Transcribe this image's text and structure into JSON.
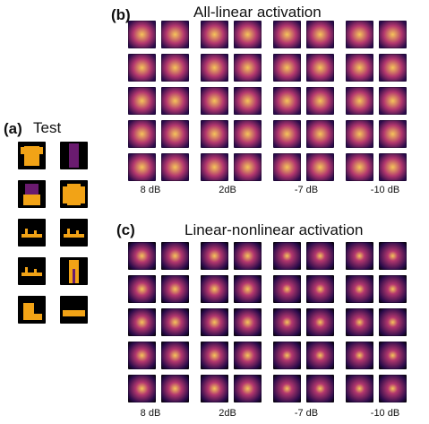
{
  "panels": {
    "a": {
      "label": "(a)",
      "title": "Test"
    },
    "b": {
      "label": "(b)",
      "title": "All-linear activation",
      "snr_labels": [
        "8 dB",
        "2dB",
        "-7 dB",
        "-10 dB"
      ]
    },
    "c": {
      "label": "(c)",
      "title": "Linear-nonlinear activation",
      "snr_labels": [
        "8 dB",
        "2dB",
        "-7 dB",
        "-10 dB"
      ]
    }
  },
  "colors": {
    "background": "#000000",
    "accent_orange": "#f2a316",
    "accent_purple": "#6a1b6f",
    "inferno_dark": "#2a0b4a",
    "inferno_mid": "#b3376e",
    "inferno_light": "#f6c55a"
  },
  "test_items": [
    "t-shirt",
    "dress",
    "dress",
    "pullover",
    "sandal",
    "sandal",
    "sandal",
    "trouser",
    "ankle-boot",
    "sneaker"
  ]
}
